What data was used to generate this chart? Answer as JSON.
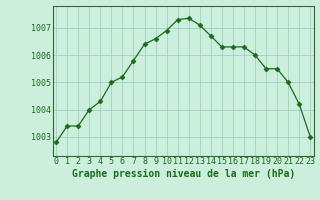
{
  "x": [
    0,
    1,
    2,
    3,
    4,
    5,
    6,
    7,
    8,
    9,
    10,
    11,
    12,
    13,
    14,
    15,
    16,
    17,
    18,
    19,
    20,
    21,
    22,
    23
  ],
  "y": [
    1002.8,
    1003.4,
    1003.4,
    1004.0,
    1004.3,
    1005.0,
    1005.2,
    1005.8,
    1006.4,
    1006.6,
    1006.9,
    1007.3,
    1007.35,
    1007.1,
    1006.7,
    1006.3,
    1006.3,
    1006.3,
    1006.0,
    1005.5,
    1005.5,
    1005.0,
    1004.2,
    1003.0
  ],
  "line_color": "#1a6b1a",
  "marker": "D",
  "marker_size": 2.5,
  "bg_color": "#cceedd",
  "grid_color": "#99ccbb",
  "ylabel_ticks": [
    1003,
    1004,
    1005,
    1006,
    1007
  ],
  "xlabel_ticks": [
    0,
    1,
    2,
    3,
    4,
    5,
    6,
    7,
    8,
    9,
    10,
    11,
    12,
    13,
    14,
    15,
    16,
    17,
    18,
    19,
    20,
    21,
    22,
    23
  ],
  "ylim": [
    1002.3,
    1007.8
  ],
  "xlim": [
    -0.3,
    23.3
  ],
  "xlabel": "Graphe pression niveau de la mer (hPa)",
  "xlabel_fontsize": 7,
  "tick_fontsize": 6,
  "tick_color": "#1a6b1a",
  "label_color": "#1a6b1a",
  "spine_color": "#336633"
}
